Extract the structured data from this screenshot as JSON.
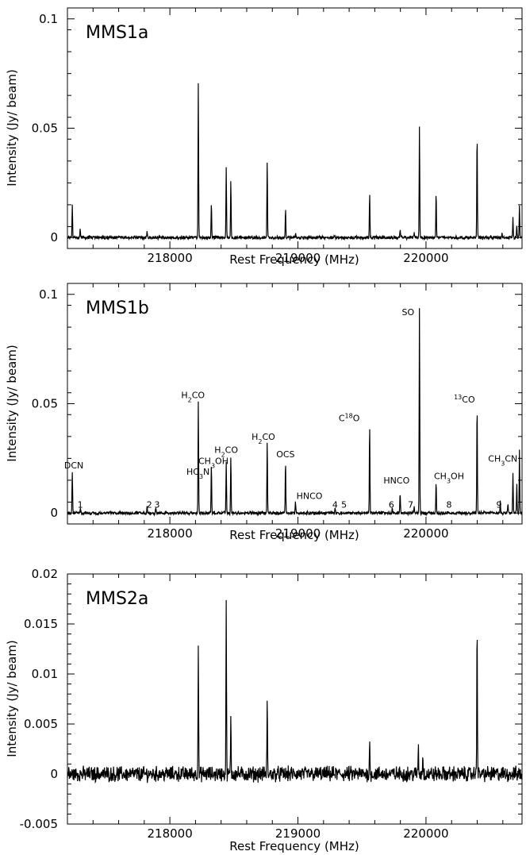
{
  "figure": {
    "xlabel": "Rest Frequency (MHz)",
    "ylabel": "Intensity (Jy/ beam)"
  },
  "chart_data": [
    {
      "type": "line",
      "panel_label": "MMS1a",
      "xlabel": "Rest Frequency (MHz)",
      "ylabel": "Intensity (Jy/ beam)",
      "xlim": [
        217200,
        220750
      ],
      "ylim": [
        -0.005,
        0.105
      ],
      "x_ticks": [
        218000,
        219000,
        220000
      ],
      "y_ticks": [
        0,
        0.05,
        0.1
      ],
      "x_tick_labels": [
        "218000",
        "219000",
        "220000"
      ],
      "y_tick_labels": [
        "0",
        "0.05",
        "0.1"
      ],
      "noise": 0.0006,
      "peaks": [
        {
          "x": 217238,
          "y": 0.0155
        },
        {
          "x": 217300,
          "y": 0.004
        },
        {
          "x": 217822,
          "y": 0.003
        },
        {
          "x": 218222,
          "y": 0.071
        },
        {
          "x": 218324,
          "y": 0.016
        },
        {
          "x": 218440,
          "y": 0.032
        },
        {
          "x": 218476,
          "y": 0.026
        },
        {
          "x": 218760,
          "y": 0.035
        },
        {
          "x": 218903,
          "y": 0.013
        },
        {
          "x": 218981,
          "y": 0.002
        },
        {
          "x": 219560,
          "y": 0.02
        },
        {
          "x": 219798,
          "y": 0.004
        },
        {
          "x": 219908,
          "y": 0.003
        },
        {
          "x": 219949,
          "y": 0.051
        },
        {
          "x": 220079,
          "y": 0.021
        },
        {
          "x": 220399,
          "y": 0.048
        },
        {
          "x": 220594,
          "y": 0.002
        },
        {
          "x": 220679,
          "y": 0.009
        },
        {
          "x": 220709,
          "y": 0.006
        },
        {
          "x": 220730,
          "y": 0.015
        }
      ],
      "annotations": []
    },
    {
      "type": "line",
      "panel_label": "MMS1b",
      "xlabel": "Rest Frequency (MHz)",
      "ylabel": "Intensity (Jy/ beam)",
      "xlim": [
        217200,
        220750
      ],
      "ylim": [
        -0.005,
        0.105
      ],
      "x_ticks": [
        218000,
        219000,
        220000
      ],
      "y_ticks": [
        0,
        0.05,
        0.1
      ],
      "x_tick_labels": [
        "218000",
        "219000",
        "220000"
      ],
      "y_tick_labels": [
        "0",
        "0.05",
        "0.1"
      ],
      "noise": 0.0006,
      "peaks": [
        {
          "x": 217238,
          "y": 0.019
        },
        {
          "x": 217300,
          "y": 0.002
        },
        {
          "x": 217822,
          "y": 0.003
        },
        {
          "x": 217890,
          "y": 0.002
        },
        {
          "x": 218222,
          "y": 0.051
        },
        {
          "x": 218324,
          "y": 0.022
        },
        {
          "x": 218440,
          "y": 0.024
        },
        {
          "x": 218476,
          "y": 0.026
        },
        {
          "x": 218760,
          "y": 0.033
        },
        {
          "x": 218903,
          "y": 0.024
        },
        {
          "x": 218981,
          "y": 0.005
        },
        {
          "x": 219290,
          "y": 0.002
        },
        {
          "x": 219560,
          "y": 0.041
        },
        {
          "x": 219737,
          "y": 0.003
        },
        {
          "x": 219798,
          "y": 0.009
        },
        {
          "x": 219908,
          "y": 0.003
        },
        {
          "x": 219949,
          "y": 0.095
        },
        {
          "x": 220079,
          "y": 0.015
        },
        {
          "x": 220399,
          "y": 0.05
        },
        {
          "x": 220580,
          "y": 0.005
        },
        {
          "x": 220640,
          "y": 0.005
        },
        {
          "x": 220679,
          "y": 0.018
        },
        {
          "x": 220709,
          "y": 0.013
        },
        {
          "x": 220730,
          "y": 0.029
        }
      ],
      "annotations": [
        {
          "text": "DCN",
          "x": 217250,
          "y": 0.0205
        },
        {
          "text": "1",
          "x": 217300,
          "y": 0.0025
        },
        {
          "text": "2",
          "x": 217840,
          "y": 0.0025
        },
        {
          "text": "3",
          "x": 217900,
          "y": 0.0025
        },
        {
          "text": "H2CO",
          "base": "H",
          "sub": "2",
          "rest": "CO",
          "x": 218180,
          "y": 0.0525
        },
        {
          "text": "HC3N",
          "base": "HC",
          "sub": "3",
          "rest": "N",
          "x": 218220,
          "y": 0.0175
        },
        {
          "text": "CH3OH",
          "base": "CH",
          "sub": "3",
          "rest": "OH",
          "x": 218340,
          "y": 0.0225
        },
        {
          "text": "H2CO",
          "base": "H",
          "sub": "2",
          "rest": "CO",
          "x": 218440,
          "y": 0.0275
        },
        {
          "text": "H2CO",
          "base": "H",
          "sub": "2",
          "rest": "CO",
          "x": 218730,
          "y": 0.0335
        },
        {
          "text": "OCS",
          "x": 218903,
          "y": 0.0255
        },
        {
          "text": "HNCO",
          "x": 219090,
          "y": 0.0065
        },
        {
          "text": "4",
          "x": 219290,
          "y": 0.0025
        },
        {
          "text": "5",
          "x": 219360,
          "y": 0.0025
        },
        {
          "text": "C18O",
          "base": "C",
          "sup": "18",
          "rest": "O",
          "x": 219400,
          "y": 0.042
        },
        {
          "text": "HNCO",
          "x": 219770,
          "y": 0.0135
        },
        {
          "text": "6",
          "x": 219730,
          "y": 0.0025
        },
        {
          "text": "7",
          "x": 219880,
          "y": 0.0025
        },
        {
          "text": "SO",
          "x": 219860,
          "y": 0.0905
        },
        {
          "text": "CH3OH",
          "base": "CH",
          "sub": "3",
          "rest": "OH",
          "x": 220180,
          "y": 0.0155
        },
        {
          "text": "8",
          "x": 220180,
          "y": 0.0025
        },
        {
          "text": "13CO",
          "pre_sup": "13",
          "rest": "CO",
          "x": 220300,
          "y": 0.0505
        },
        {
          "text": "9",
          "x": 220570,
          "y": 0.0025
        },
        {
          "text": "CH3CN",
          "base": "CH",
          "sub": "3",
          "rest": "CN",
          "x": 220600,
          "y": 0.0235
        }
      ]
    },
    {
      "type": "line",
      "panel_label": "MMS2a",
      "xlabel": "Rest Frequency (MHz)",
      "ylabel": "Intensity (Jy/ beam)",
      "xlim": [
        217200,
        220750
      ],
      "ylim": [
        -0.005,
        0.02
      ],
      "x_ticks": [
        218000,
        219000,
        220000
      ],
      "y_ticks": [
        -0.005,
        0,
        0.005,
        0.01,
        0.015,
        0.02
      ],
      "x_tick_labels": [
        "218000",
        "219000",
        "220000"
      ],
      "y_tick_labels": [
        "-0.005",
        "0",
        "0.005",
        "0.01",
        "0.015",
        "0.02"
      ],
      "noise": 0.0006,
      "peaks": [
        {
          "x": 218222,
          "y": 0.013
        },
        {
          "x": 218440,
          "y": 0.0168
        },
        {
          "x": 218476,
          "y": 0.0058
        },
        {
          "x": 218760,
          "y": 0.0072
        },
        {
          "x": 219560,
          "y": 0.003
        },
        {
          "x": 219940,
          "y": 0.0028
        },
        {
          "x": 219975,
          "y": 0.002
        },
        {
          "x": 220399,
          "y": 0.0158
        }
      ],
      "annotations": []
    }
  ]
}
